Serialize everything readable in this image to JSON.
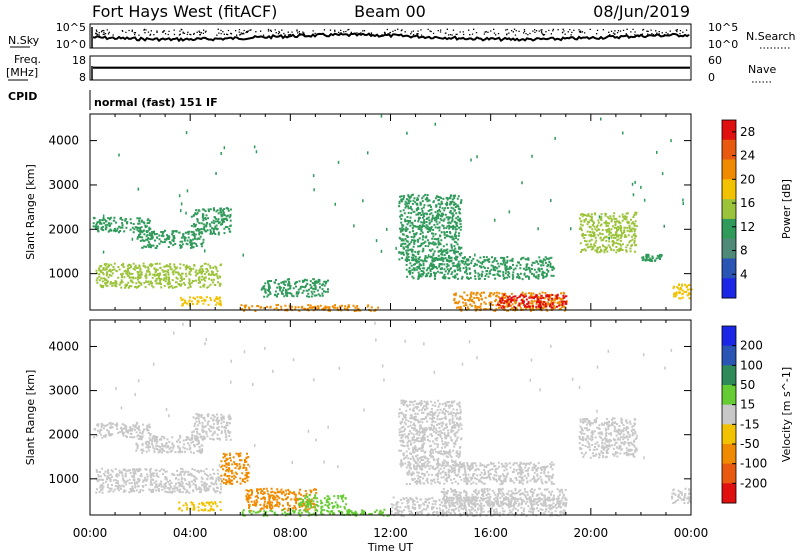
{
  "header": {
    "title": "Fort Hays West (fitACF)",
    "beam": "Beam 00",
    "date": "08/Jun/2019"
  },
  "strip_labels": {
    "nsky": "N.Sky",
    "nsky_tick_top": "10^5",
    "nsky_tick_bottom": "10^0",
    "nsearch": "N.Search",
    "nsearch_tick_top": "10^5",
    "nsearch_tick_bottom": "10^0",
    "freq": "Freq.",
    "freq_unit": "[MHz]",
    "freq_tick_top": "18",
    "freq_tick_bottom": "8",
    "nave": "Nave",
    "nave_tick_top": "60",
    "nave_tick_bottom": "0",
    "cpid": "CPID",
    "cpid_text": "normal (fast) 151 IF"
  },
  "x_axis": {
    "label": "Time UT",
    "ticks": [
      "00:00",
      "04:00",
      "08:00",
      "12:00",
      "16:00",
      "20:00",
      "00:00"
    ]
  },
  "chart_data": [
    {
      "type": "heatmap",
      "panel": "power",
      "xlabel": "Time UT",
      "ylabel": "Slant Range [km]",
      "xlim_hours": [
        0,
        24
      ],
      "ylim_km": [
        180,
        4600
      ],
      "y_ticks": [
        "1000",
        "2000",
        "3000",
        "4000"
      ],
      "colorbar": {
        "label": "Power [dB]",
        "ticks": [
          "4",
          "8",
          "12",
          "16",
          "20",
          "24",
          "28"
        ],
        "range": [
          0,
          30
        ],
        "colors": [
          "#1a28e6",
          "#2a55b5",
          "#4f8a78",
          "#2f9a5a",
          "#9cc43a",
          "#f2c200",
          "#f08a00",
          "#e85a10",
          "#e01010"
        ]
      },
      "regions": [
        {
          "t0": 0.1,
          "t1": 2.4,
          "r0": 1950,
          "r1": 2300,
          "level": 12
        },
        {
          "t0": 1.8,
          "t1": 4.5,
          "r0": 1600,
          "r1": 2000,
          "level": 10
        },
        {
          "t0": 4.0,
          "t1": 5.6,
          "r0": 1900,
          "r1": 2500,
          "level": 11
        },
        {
          "t0": 0.2,
          "t1": 5.2,
          "r0": 700,
          "r1": 1250,
          "level": 14
        },
        {
          "t0": 3.5,
          "t1": 5.2,
          "r0": 300,
          "r1": 500,
          "level": 18
        },
        {
          "t0": 6.0,
          "t1": 11.5,
          "r0": 180,
          "r1": 320,
          "level": 22
        },
        {
          "t0": 6.8,
          "t1": 9.5,
          "r0": 500,
          "r1": 900,
          "level": 10
        },
        {
          "t0": 12.3,
          "t1": 14.8,
          "r0": 1300,
          "r1": 2800,
          "level": 10
        },
        {
          "t0": 12.6,
          "t1": 18.5,
          "r0": 900,
          "r1": 1400,
          "level": 12
        },
        {
          "t0": 14.5,
          "t1": 19.0,
          "r0": 180,
          "r1": 600,
          "level": 22
        },
        {
          "t0": 16.2,
          "t1": 19.0,
          "r0": 250,
          "r1": 550,
          "level": 28
        },
        {
          "t0": 19.5,
          "t1": 21.8,
          "r0": 1500,
          "r1": 2400,
          "level": 14
        },
        {
          "t0": 22.0,
          "t1": 22.8,
          "r0": 1300,
          "r1": 1450,
          "level": 10
        },
        {
          "t0": 23.2,
          "t1": 24.0,
          "r0": 450,
          "r1": 800,
          "level": 18
        }
      ]
    },
    {
      "type": "heatmap",
      "panel": "velocity",
      "xlabel": "Time UT",
      "ylabel": "Slant Range [km]",
      "xlim_hours": [
        0,
        24
      ],
      "ylim_km": [
        180,
        4600
      ],
      "y_ticks": [
        "1000",
        "2000",
        "3000",
        "4000"
      ],
      "colorbar": {
        "label": "Velocity [m s^-1]",
        "ticks": [
          "200",
          "100",
          "50",
          "15",
          "-15",
          "-50",
          "-100",
          "-200"
        ],
        "range": [
          -250,
          250
        ],
        "colors": [
          "#1a28e6",
          "#2a55b5",
          "#2f8a5a",
          "#66cc33",
          "#c8c8c8",
          "#f2c200",
          "#f08a00",
          "#e85a10",
          "#e01010"
        ]
      },
      "regions": [
        {
          "t0": 0.1,
          "t1": 2.4,
          "r0": 1950,
          "r1": 2300,
          "level": 0
        },
        {
          "t0": 1.8,
          "t1": 4.5,
          "r0": 1600,
          "r1": 2000,
          "level": 0
        },
        {
          "t0": 4.0,
          "t1": 5.6,
          "r0": 1900,
          "r1": 2500,
          "level": 0
        },
        {
          "t0": 0.2,
          "t1": 5.2,
          "r0": 700,
          "r1": 1250,
          "level": 0
        },
        {
          "t0": 5.2,
          "t1": 6.3,
          "r0": 900,
          "r1": 1600,
          "level": -90
        },
        {
          "t0": 3.5,
          "t1": 5.2,
          "r0": 300,
          "r1": 500,
          "level": -60
        },
        {
          "t0": 6.2,
          "t1": 9.0,
          "r0": 300,
          "r1": 800,
          "level": -90
        },
        {
          "t0": 8.3,
          "t1": 10.2,
          "r0": 350,
          "r1": 650,
          "level": 80
        },
        {
          "t0": 6.0,
          "t1": 12.0,
          "r0": 180,
          "r1": 320,
          "level": 30
        },
        {
          "t0": 12.3,
          "t1": 14.8,
          "r0": 1300,
          "r1": 2800,
          "level": 0
        },
        {
          "t0": 12.6,
          "t1": 18.5,
          "r0": 900,
          "r1": 1400,
          "level": 0
        },
        {
          "t0": 12.0,
          "t1": 19.0,
          "r0": 180,
          "r1": 600,
          "level": 25
        },
        {
          "t0": 14.0,
          "t1": 19.0,
          "r0": 400,
          "r1": 800,
          "level": 0
        },
        {
          "t0": 19.5,
          "t1": 21.8,
          "r0": 1500,
          "r1": 2400,
          "level": 0
        },
        {
          "t0": 23.2,
          "t1": 24.0,
          "r0": 450,
          "r1": 800,
          "level": 0
        }
      ]
    }
  ],
  "strips": {
    "nsky_level_fraction": 0.45,
    "freq_level_fraction": 0.18
  }
}
